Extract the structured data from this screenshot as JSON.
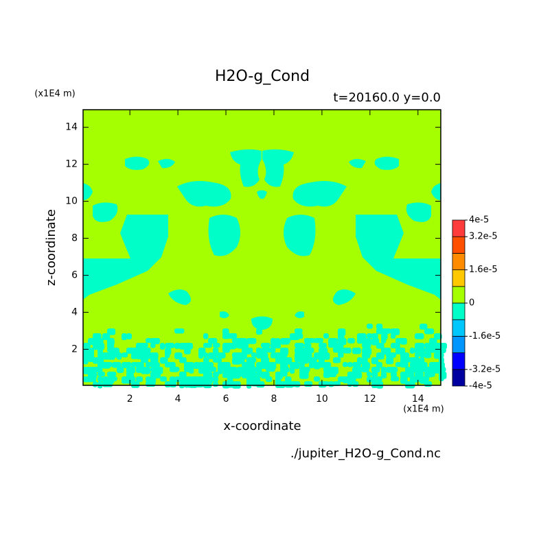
{
  "chart_data": {
    "type": "contour",
    "title": "H2O-g_Cond",
    "subtitle": "t=20160.0 y=0.0",
    "x_label": "x-coordinate",
    "y_label": "z-coordinate",
    "x_unit": "(x1E4 m)",
    "y_unit": "(x1E4 m)",
    "source": "./jupiter_H2O-g_Cond.nc",
    "xlim": [
      0.05,
      14.95
    ],
    "ylim": [
      0.05,
      14.95
    ],
    "xticks": [
      2,
      4,
      6,
      8,
      10,
      12,
      14
    ],
    "yticks": [
      2,
      4,
      6,
      8,
      10,
      12,
      14
    ],
    "colorbar": {
      "levels": [
        -4e-05,
        -3.2e-05,
        -2.4e-05,
        -1.6e-05,
        -8e-06,
        0,
        8e-06,
        1.6e-05,
        2.4e-05,
        3.2e-05,
        4e-05
      ],
      "colors": [
        "#0000a0",
        "#0000ff",
        "#0096ff",
        "#00c8ff",
        "#00ffc8",
        "#a5ff00",
        "#ffc800",
        "#ff8c00",
        "#ff5000",
        "#ff3c3c"
      ],
      "ticks": [
        {
          "value": -4e-05,
          "label": "-4e-5"
        },
        {
          "value": -3.2e-05,
          "label": "-3.2e-5"
        },
        {
          "value": -1.6e-05,
          "label": "-1.6e-5"
        },
        0,
        {
          "value": 1.6e-05,
          "label": "1.6e-5"
        },
        {
          "value": 3.2e-05,
          "label": "3.2e-5"
        },
        {
          "value": 4e-05,
          "label": "4e-5"
        }
      ]
    }
  }
}
